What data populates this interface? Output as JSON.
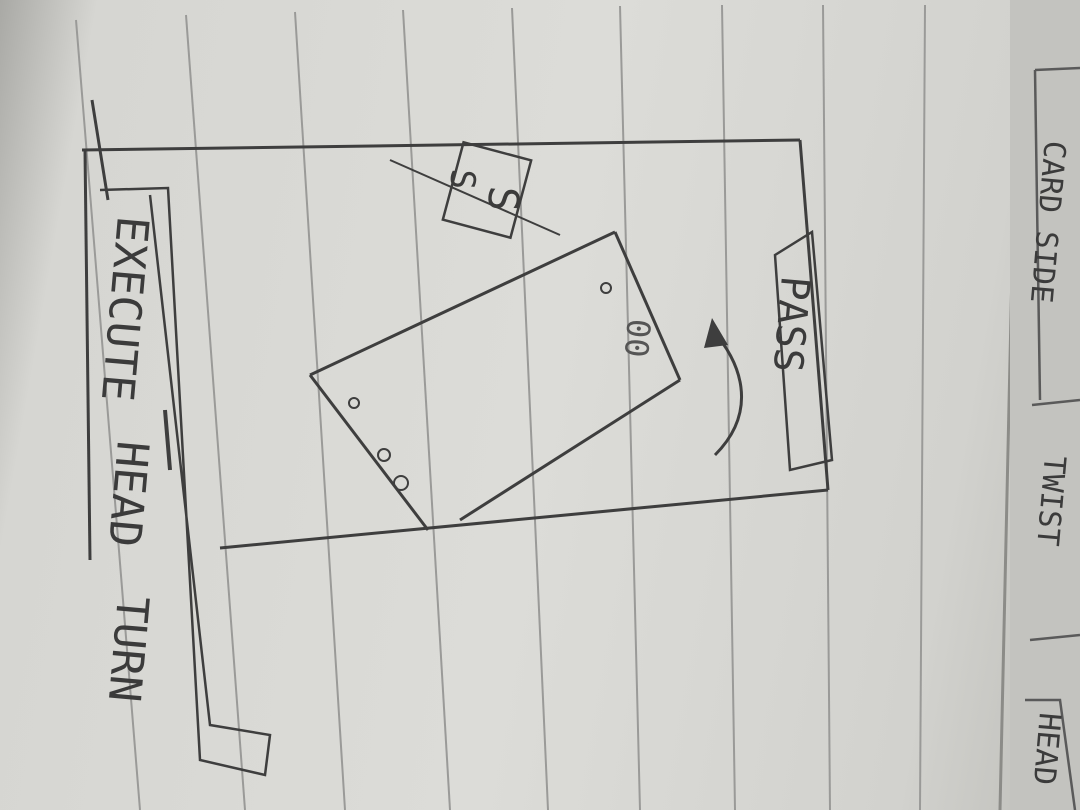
{
  "sketch": {
    "execute_button": "EXECUTE",
    "head_button": "HEAD",
    "turn_button": "TURN",
    "pass_label": "PASS",
    "card_badge": "S",
    "card_badge_small": "S",
    "card_label": "00",
    "tabs": {
      "tab1": "CARD SIDE",
      "tab2": "TWIST",
      "tab3": "HEAD"
    }
  }
}
